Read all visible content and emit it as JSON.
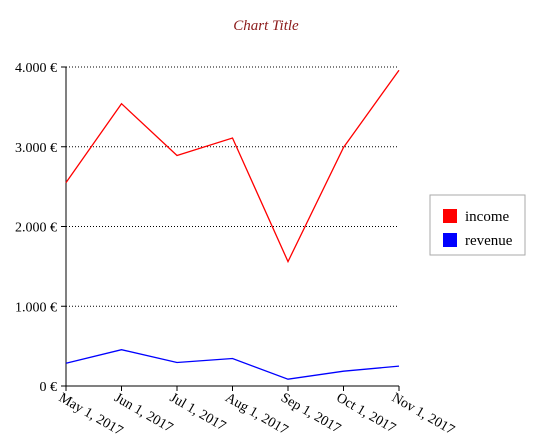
{
  "chart_data": {
    "type": "line",
    "title": "Chart Title",
    "xlabel": "",
    "ylabel": "",
    "categories": [
      "May 1, 2017",
      "Jun 1, 2017",
      "Jul 1, 2017",
      "Aug 1, 2017",
      "Sep 1, 2017",
      "Oct 1, 2017",
      "Nov 1, 2017"
    ],
    "ylim": [
      0,
      4000
    ],
    "yticks": [
      0,
      1000,
      2000,
      3000,
      4000
    ],
    "ytick_labels": [
      "0 €",
      "1.000 €",
      "2.000 €",
      "3.000 €",
      "4.000 €"
    ],
    "grid": "horizontal-dotted",
    "legend": "right",
    "series": [
      {
        "name": "income",
        "color": "#ff0000",
        "values": [
          2550,
          3540,
          2890,
          3110,
          1560,
          2990,
          3960
        ]
      },
      {
        "name": "revenue",
        "color": "#0000ff",
        "values": [
          285,
          455,
          295,
          345,
          85,
          185,
          250
        ]
      }
    ]
  }
}
